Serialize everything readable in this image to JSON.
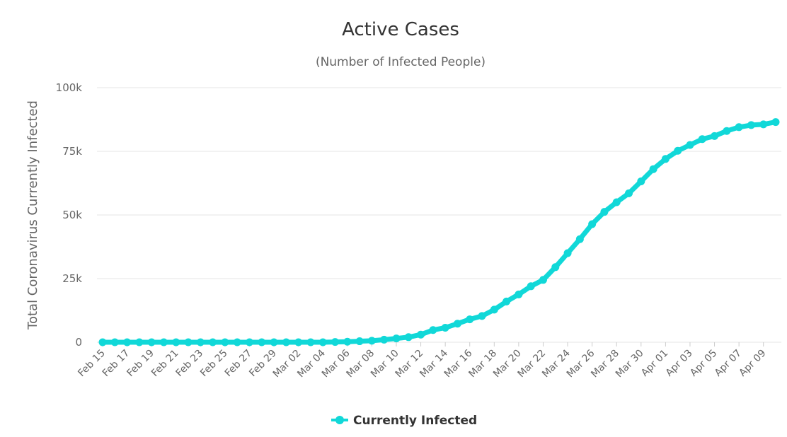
{
  "chart_data": {
    "type": "line",
    "title": "Active Cases",
    "subtitle": "(Number of Infected People)",
    "ylabel": "Total Coronavirus Currently Infected",
    "xlabel": "",
    "ylim": [
      0,
      100000
    ],
    "y_ticks": [
      0,
      25000,
      50000,
      75000,
      100000
    ],
    "y_tick_labels": [
      "0",
      "25k",
      "50k",
      "75k",
      "100k"
    ],
    "grid": true,
    "legend_position": "bottom-center",
    "categories": [
      "Feb 15",
      "Feb 16",
      "Feb 17",
      "Feb 18",
      "Feb 19",
      "Feb 20",
      "Feb 21",
      "Feb 22",
      "Feb 23",
      "Feb 24",
      "Feb 25",
      "Feb 26",
      "Feb 27",
      "Feb 28",
      "Feb 29",
      "Mar 01",
      "Mar 02",
      "Mar 03",
      "Mar 04",
      "Mar 05",
      "Mar 06",
      "Mar 07",
      "Mar 08",
      "Mar 09",
      "Mar 10",
      "Mar 11",
      "Mar 12",
      "Mar 13",
      "Mar 14",
      "Mar 15",
      "Mar 16",
      "Mar 17",
      "Mar 18",
      "Mar 19",
      "Mar 20",
      "Mar 21",
      "Mar 22",
      "Mar 23",
      "Mar 24",
      "Mar 25",
      "Mar 26",
      "Mar 27",
      "Mar 28",
      "Mar 29",
      "Mar 30",
      "Mar 31",
      "Apr 01",
      "Apr 02",
      "Apr 03",
      "Apr 04",
      "Apr 05",
      "Apr 06",
      "Apr 07",
      "Apr 08",
      "Apr 09",
      "Apr 10"
    ],
    "x_tick_labels": [
      "Feb 15",
      "Feb 17",
      "Feb 19",
      "Feb 21",
      "Feb 23",
      "Feb 25",
      "Feb 27",
      "Feb 29",
      "Mar 02",
      "Mar 04",
      "Mar 06",
      "Mar 08",
      "Mar 10",
      "Mar 12",
      "Mar 14",
      "Mar 16",
      "Mar 18",
      "Mar 20",
      "Mar 22",
      "Mar 24",
      "Mar 26",
      "Mar 28",
      "Mar 30",
      "Apr 01",
      "Apr 03",
      "Apr 05",
      "Apr 07",
      "Apr 09"
    ],
    "series": [
      {
        "name": "Currently Infected",
        "color": "#11d8d8",
        "values": [
          3,
          3,
          3,
          3,
          3,
          3,
          3,
          3,
          3,
          3,
          3,
          3,
          3,
          3,
          3,
          3,
          3,
          3,
          3,
          100,
          200,
          400,
          600,
          1000,
          1500,
          2000,
          3000,
          4800,
          5700,
          7300,
          9000,
          10300,
          12800,
          16000,
          18800,
          22000,
          24500,
          29500,
          35000,
          40500,
          46400,
          51200,
          55000,
          58500,
          63200,
          68000,
          72000,
          75200,
          77500,
          79800,
          81000,
          83000,
          84500,
          85300,
          85600,
          86500
        ]
      }
    ]
  }
}
